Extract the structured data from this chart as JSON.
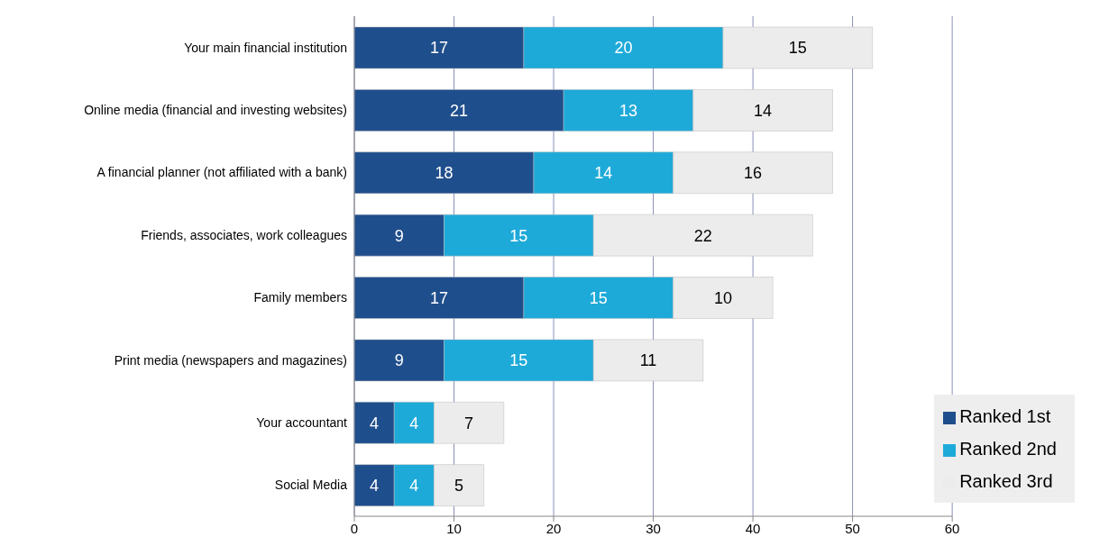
{
  "chart_data": {
    "type": "bar",
    "orientation": "horizontal",
    "stacked": true,
    "data_labels": true,
    "grid": "x",
    "legend": "bottom right",
    "categories": [
      "Your main financial institution",
      "Online media (financial and investing websites)",
      "A financial planner (not affiliated with a bank)",
      "Friends, associates, work colleagues",
      "Family members",
      "Print media (newspapers and magazines)",
      "Your accountant",
      "Social Media"
    ],
    "series": [
      {
        "name": "Ranked 1st",
        "color": "#1f4e8c",
        "values": [
          17,
          21,
          18,
          9,
          17,
          9,
          4,
          4
        ]
      },
      {
        "name": "Ranked 2nd",
        "color": "#1eaad9",
        "values": [
          20,
          13,
          14,
          15,
          15,
          15,
          4,
          4
        ]
      },
      {
        "name": "Ranked 3rd",
        "color": "#ececec",
        "values": [
          15,
          14,
          16,
          22,
          10,
          11,
          7,
          5
        ]
      }
    ],
    "xlim": [
      0,
      60
    ],
    "xticks": [
      0,
      10,
      20,
      30,
      40,
      50,
      60
    ]
  }
}
